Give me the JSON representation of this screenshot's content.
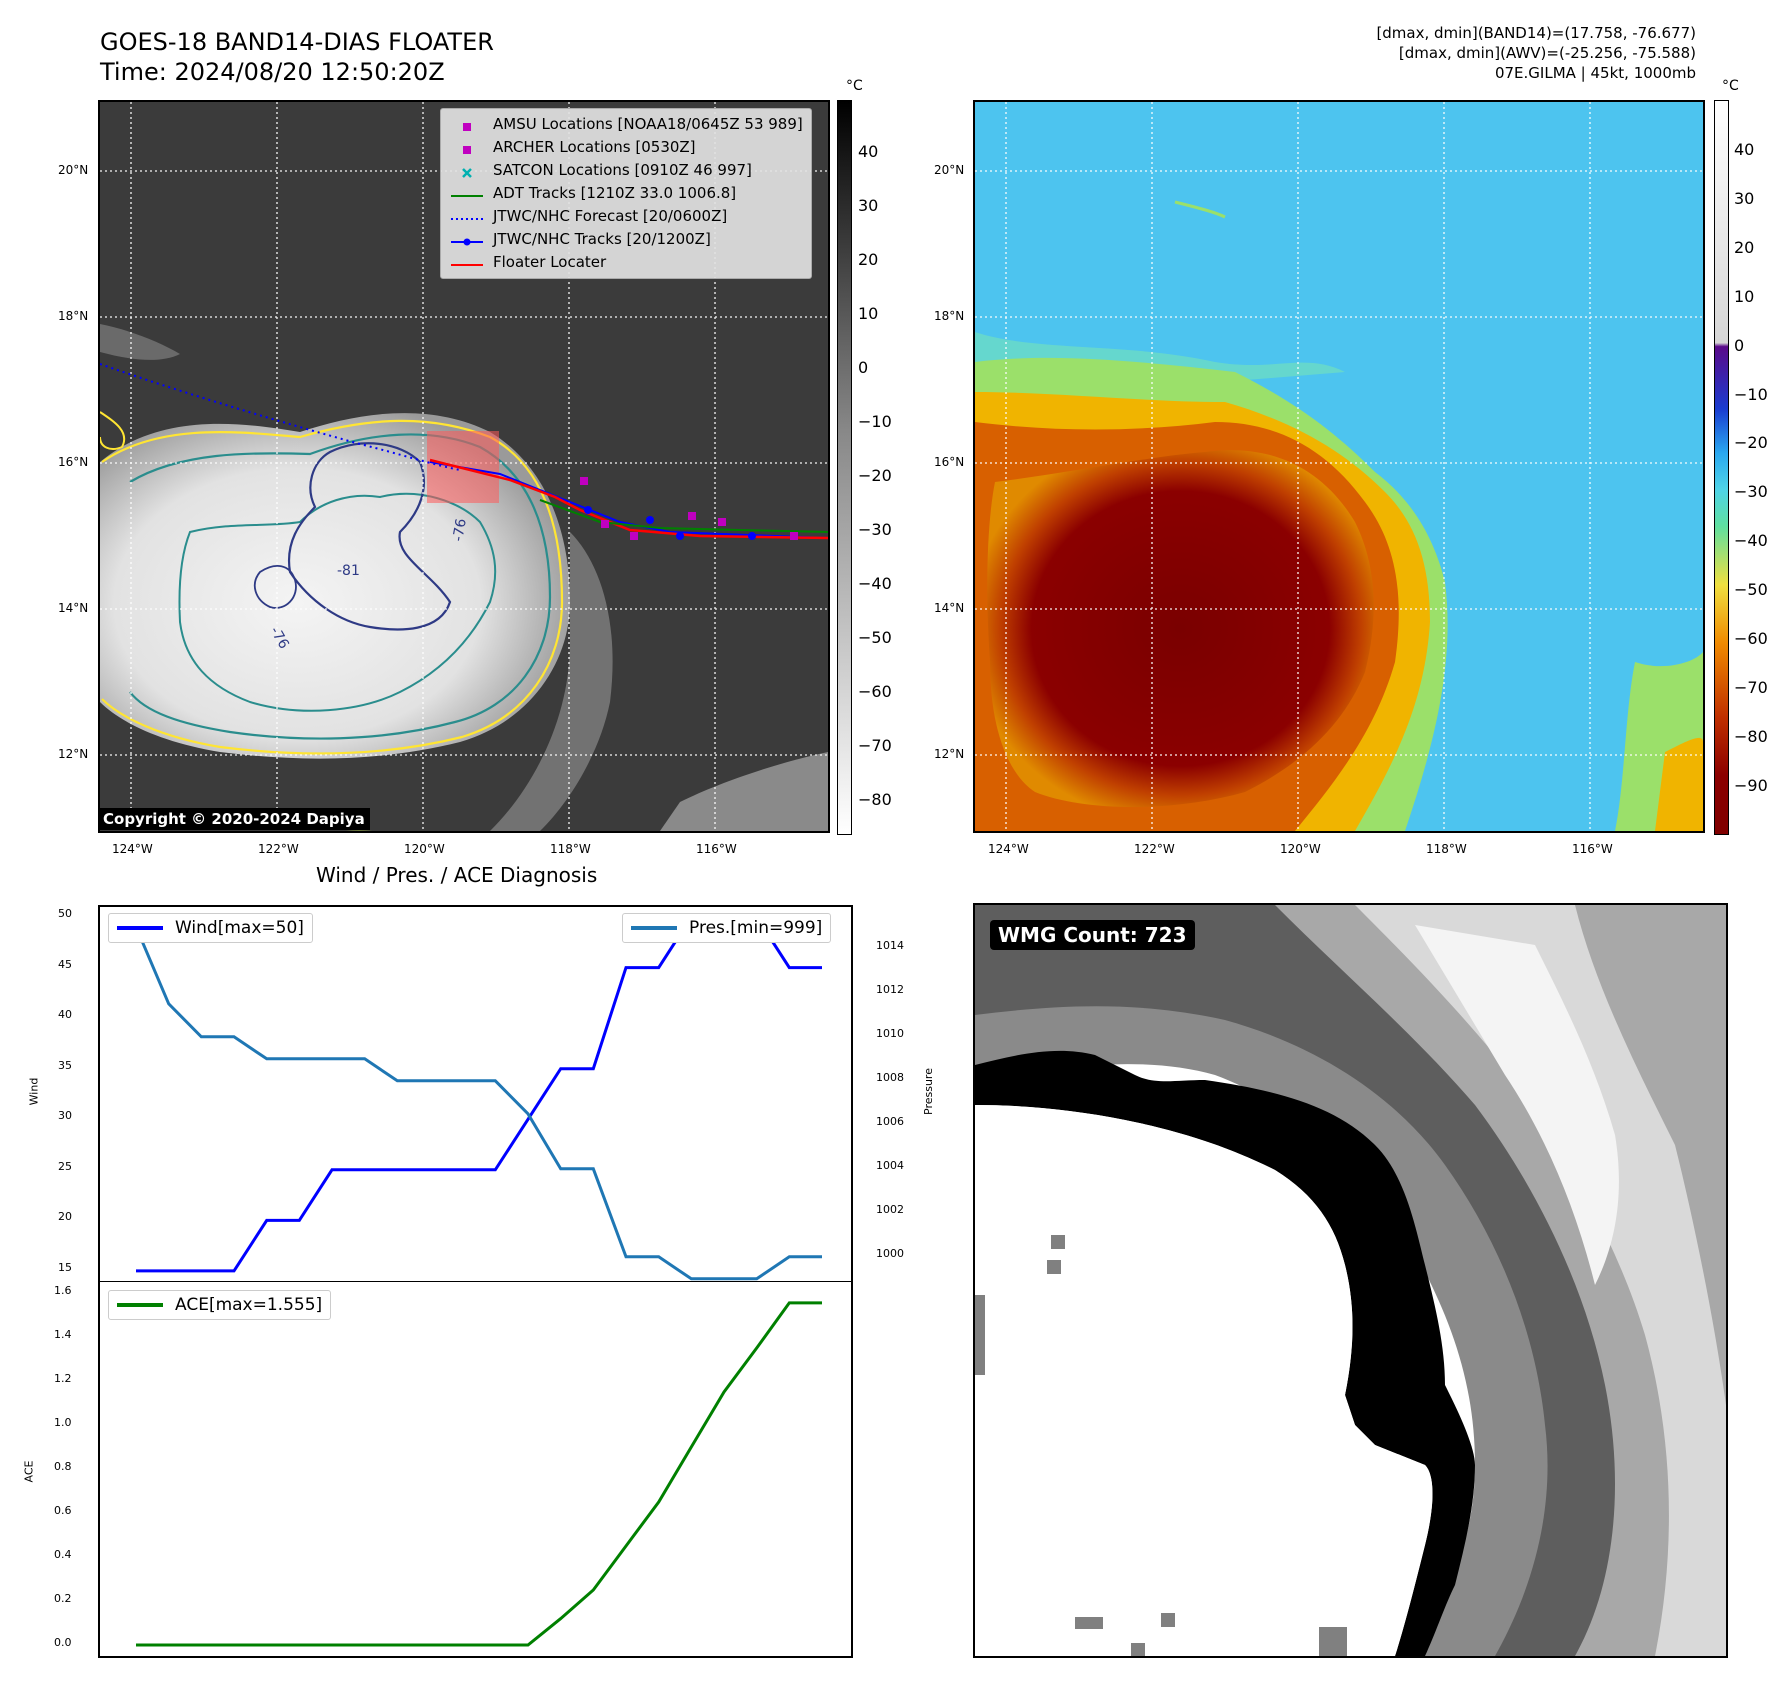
{
  "header": {
    "title_line1": "GOES-18 BAND14-DIAS FLOATER",
    "title_line2": "Time: 2024/08/20 12:50:20Z",
    "info_line1": "[dmax, dmin](BAND14)=(17.758, -76.677)",
    "info_line2": "[dmax, dmin](AWV)=(-25.256, -75.588)",
    "info_line3": "07E.GILMA | 45kt, 1000mb"
  },
  "map": {
    "lat_labels": [
      "20°N",
      "18°N",
      "16°N",
      "14°N",
      "12°N"
    ],
    "lon_labels": [
      "124°W",
      "122°W",
      "120°W",
      "118°W",
      "116°W"
    ],
    "copyright": "Copyright © 2020-2024 Dapiya",
    "contour_labels": [
      "-81",
      "-76",
      "-76"
    ],
    "legend": [
      {
        "label": "AMSU Locations [NOAA18/0645Z 53 989]",
        "color": "#c000c0",
        "kind": "square"
      },
      {
        "label": "ARCHER Locations [0530Z]",
        "color": "#c000c0",
        "kind": "square"
      },
      {
        "label": "SATCON Locations [0910Z 46 997]",
        "color": "#00b0b0",
        "kind": "x"
      },
      {
        "label": "ADT Tracks [1210Z 33.0 1006.8]",
        "color": "#008000",
        "kind": "line"
      },
      {
        "label": "JTWC/NHC Forecast [20/0600Z]",
        "color": "#0000ff",
        "kind": "dotted"
      },
      {
        "label": "JTWC/NHC Tracks [20/1200Z]",
        "color": "#0000ff",
        "kind": "line-dot"
      },
      {
        "label": "Floater Locater",
        "color": "#ff0000",
        "kind": "line"
      }
    ]
  },
  "colorbar_gray": {
    "unit": "°C",
    "ticks": [
      "40",
      "30",
      "20",
      "10",
      "0",
      "−10",
      "−20",
      "−30",
      "−40",
      "−50",
      "−60",
      "−70",
      "−80"
    ]
  },
  "colorbar_color": {
    "unit": "°C",
    "ticks": [
      "40",
      "30",
      "20",
      "10",
      "0",
      "−10",
      "−20",
      "−30",
      "−40",
      "−50",
      "−60",
      "−70",
      "−80",
      "−90"
    ]
  },
  "diagnosis": {
    "title": "Wind / Pres. / ACE Diagnosis",
    "wind_ylabel": "Wind",
    "pres_ylabel": "Pressure",
    "ace_ylabel": "ACE",
    "wind_legend": "Wind[max=50]",
    "pres_legend": "Pres.[min=999]",
    "ace_legend": "ACE[max=1.555]",
    "wind_ticks": [
      "50",
      "45",
      "40",
      "35",
      "30",
      "25",
      "20",
      "15"
    ],
    "pres_ticks": [
      "1014",
      "1012",
      "1010",
      "1008",
      "1006",
      "1004",
      "1002",
      "1000"
    ],
    "ace_ticks": [
      "1.6",
      "1.4",
      "1.2",
      "1.0",
      "0.8",
      "0.6",
      "0.4",
      "0.2",
      "0.0"
    ],
    "colors": {
      "wind": "#0000ff",
      "pres": "#1f77b4",
      "ace": "#008000"
    }
  },
  "chart_data": [
    {
      "type": "line",
      "title": "Wind / Pres. / ACE Diagnosis",
      "ylabel": "Wind",
      "ylim": [
        14,
        51
      ],
      "x": [
        0,
        1,
        2,
        3,
        4,
        5,
        6,
        7,
        8,
        9,
        10,
        11,
        12,
        13,
        14,
        15,
        16,
        17,
        18,
        19,
        20,
        21
      ],
      "series": [
        {
          "name": "Wind[max=50]",
          "values": [
            15,
            15,
            15,
            15,
            20,
            20,
            25,
            25,
            25,
            25,
            25,
            25,
            30,
            35,
            35,
            45,
            45,
            50,
            50,
            50,
            45,
            45
          ]
        }
      ]
    },
    {
      "type": "line",
      "ylabel": "Pressure",
      "ylim": [
        998.9,
        1015.9
      ],
      "x": [
        0,
        1,
        2,
        3,
        4,
        5,
        6,
        7,
        8,
        9,
        10,
        11,
        12,
        13,
        14,
        15,
        16,
        17,
        18,
        19,
        20,
        21
      ],
      "series": [
        {
          "name": "Pres.[min=999]",
          "values": [
            1015,
            1011.5,
            1010,
            1010,
            1009,
            1009,
            1009,
            1009,
            1008,
            1008,
            1008,
            1008,
            1006.5,
            1004,
            1004,
            1000,
            1000,
            999,
            999,
            999,
            1000,
            1000
          ]
        }
      ]
    },
    {
      "type": "line",
      "ylabel": "ACE",
      "ylim": [
        -0.05,
        1.65
      ],
      "x": [
        0,
        1,
        2,
        3,
        4,
        5,
        6,
        7,
        8,
        9,
        10,
        11,
        12,
        13,
        14,
        15,
        16,
        17,
        18,
        19,
        20,
        21
      ],
      "series": [
        {
          "name": "ACE[max=1.555]",
          "values": [
            0,
            0,
            0,
            0,
            0,
            0,
            0,
            0,
            0,
            0,
            0,
            0,
            0,
            0.12,
            0.25,
            0.45,
            0.65,
            0.9,
            1.15,
            1.35,
            1.555,
            1.555
          ]
        }
      ]
    }
  ],
  "wmg": {
    "count_label": "WMG Count: 723"
  }
}
